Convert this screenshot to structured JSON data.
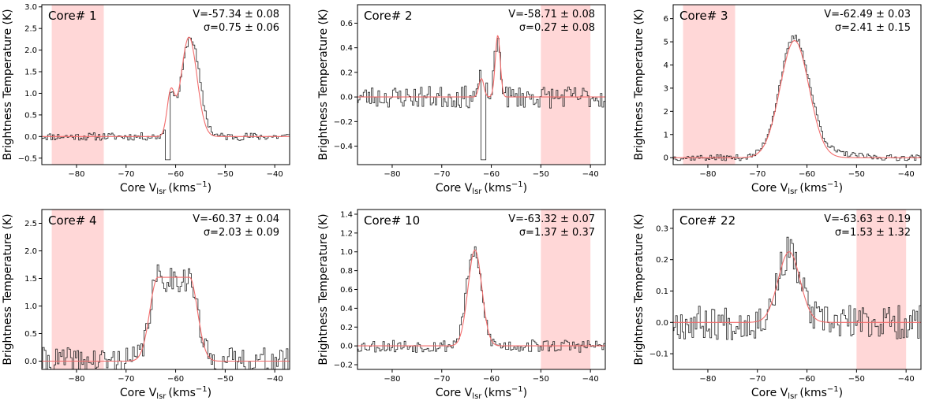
{
  "figure": {
    "x_label": "Core V",
    "x_label_sub": "lsr",
    "x_label_unit": "(kms",
    "x_label_unit_sup": "−1",
    "x_label_close": ")",
    "y_label": "Brightness Temperature (K)"
  },
  "chart_data": [
    {
      "type": "line",
      "title": "Core# 1",
      "v_text": "V=-57.34 ± 0.08",
      "sigma_text": "σ=0.75 ± 0.06",
      "xlim": [
        -87,
        -37
      ],
      "ylim": [
        -0.65,
        3.05
      ],
      "xticks": [
        -80,
        -70,
        -60,
        -50,
        -40
      ],
      "yticks": [
        -0.5,
        0.0,
        0.5,
        1.0,
        1.5,
        2.0,
        2.5,
        3.0
      ],
      "tick_format": "1",
      "shaded_range": [
        -85,
        -74.5
      ],
      "series": [
        {
          "kind": "observed",
          "profile": "two",
          "amp": 2.3,
          "center": -57.0,
          "width": 1.8,
          "amp2": 0.9,
          "center2": -61.0,
          "width2": 0.7,
          "noise": 0.09,
          "dip": -61.5,
          "seed": 11
        },
        {
          "kind": "fit",
          "profile": "two",
          "amp": 2.3,
          "center": -57.3,
          "width": 1.6,
          "amp2": 0.95,
          "center2": -61.0,
          "width2": 0.75
        }
      ]
    },
    {
      "type": "line",
      "title": "Core# 2",
      "v_text": "V=-58.71 ± 0.08",
      "sigma_text": "σ=0.27 ± 0.08",
      "xlim": [
        -87,
        -37
      ],
      "ylim": [
        -0.55,
        0.75
      ],
      "xticks": [
        -80,
        -70,
        -60,
        -50,
        -40
      ],
      "yticks": [
        -0.4,
        -0.2,
        0.0,
        0.2,
        0.4,
        0.6
      ],
      "tick_format": "1",
      "shaded_range": [
        -50,
        -40
      ],
      "series": [
        {
          "kind": "observed",
          "profile": "two",
          "amp": 0.45,
          "center": -58.7,
          "width": 0.6,
          "amp2": 0.15,
          "center2": -62.0,
          "width2": 0.6,
          "noise": 0.09,
          "dip": -61.5,
          "seed": 23
        },
        {
          "kind": "fit",
          "profile": "two",
          "amp": 0.5,
          "center": -58.7,
          "width": 0.5,
          "amp2": 0.15,
          "center2": -62.0,
          "width2": 0.5
        }
      ]
    },
    {
      "type": "line",
      "title": "Core# 3",
      "v_text": "V=-62.49 ± 0.03",
      "sigma_text": "σ=2.41 ± 0.15",
      "xlim": [
        -87,
        -37
      ],
      "ylim": [
        -0.3,
        6.6
      ],
      "xticks": [
        -80,
        -70,
        -60,
        -50,
        -40
      ],
      "yticks": [
        0,
        1,
        2,
        3,
        4,
        5,
        6
      ],
      "tick_format": "0",
      "shaded_range": [
        -85,
        -74.5
      ],
      "series": [
        {
          "kind": "observed",
          "profile": "gauss",
          "amp": 5.1,
          "center": -62.5,
          "width": 3.0,
          "noise": 0.13,
          "tail": 0.5,
          "seed": 37
        },
        {
          "kind": "fit",
          "profile": "gauss",
          "amp": 5.05,
          "center": -62.5,
          "width": 2.9
        }
      ]
    },
    {
      "type": "line",
      "title": "Core# 4",
      "v_text": "V=-60.37 ± 0.04",
      "sigma_text": "σ=2.03 ± 0.09",
      "xlim": [
        -87,
        -37
      ],
      "ylim": [
        -0.15,
        2.75
      ],
      "xticks": [
        -80,
        -70,
        -60,
        -50,
        -40
      ],
      "yticks": [
        0.0,
        0.5,
        1.0,
        1.5,
        2.0,
        2.5
      ],
      "tick_format": "1",
      "shaded_range": [
        -85,
        -74.5
      ],
      "series": [
        {
          "kind": "observed",
          "profile": "flat",
          "amp": 1.5,
          "center": -60.4,
          "width": 1.6,
          "half": 3.2,
          "noise": 0.25,
          "seed": 41
        },
        {
          "kind": "fit",
          "profile": "flat",
          "amp": 1.52,
          "center": -60.4,
          "width": 1.6,
          "half": 3.2
        }
      ]
    },
    {
      "type": "line",
      "title": "Core# 10",
      "v_text": "V=-63.32 ± 0.07",
      "sigma_text": "σ=1.37 ± 0.37",
      "xlim": [
        -87,
        -37
      ],
      "ylim": [
        -0.25,
        1.45
      ],
      "xticks": [
        -80,
        -70,
        -60,
        -50,
        -40
      ],
      "yticks": [
        -0.2,
        0.0,
        0.2,
        0.4,
        0.6,
        0.8,
        1.0,
        1.2,
        1.4
      ],
      "tick_format": "1",
      "shaded_range": [
        -50,
        -40
      ],
      "series": [
        {
          "kind": "observed",
          "profile": "gauss",
          "amp": 1.0,
          "center": -63.5,
          "width": 1.5,
          "noise": 0.07,
          "seed": 53
        },
        {
          "kind": "fit",
          "profile": "gauss",
          "amp": 1.02,
          "center": -63.3,
          "width": 1.4
        }
      ]
    },
    {
      "type": "line",
      "title": "Core# 22",
      "v_text": "V=-63.63 ± 0.19",
      "sigma_text": "σ=1.53 ± 1.32",
      "xlim": [
        -87,
        -37
      ],
      "ylim": [
        -0.15,
        0.36
      ],
      "xticks": [
        -80,
        -70,
        -60,
        -50,
        -40
      ],
      "yticks": [
        -0.1,
        0.0,
        0.1,
        0.2,
        0.3
      ],
      "tick_format": "1",
      "shaded_range": [
        -50,
        -40
      ],
      "series": [
        {
          "kind": "observed",
          "profile": "gauss",
          "amp": 0.22,
          "center": -63.6,
          "width": 2.3,
          "noise": 0.055,
          "seed": 67
        },
        {
          "kind": "fit",
          "profile": "gauss",
          "amp": 0.225,
          "center": -63.6,
          "width": 2.2
        }
      ]
    }
  ]
}
